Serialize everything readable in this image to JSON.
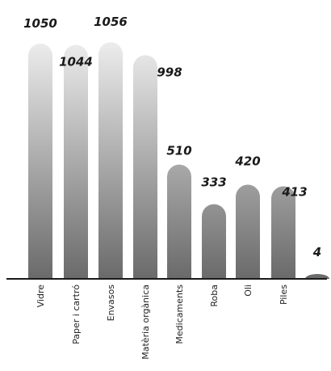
{
  "chart_data": {
    "type": "bar",
    "categories": [
      "Vidre",
      "Paper i cartró",
      "Envasos",
      "Matèria orgànica",
      "Medicaments",
      "Roba",
      "Oli",
      "Piles",
      ""
    ],
    "values": [
      1050,
      1044,
      1056,
      998,
      510,
      333,
      420,
      413,
      4
    ],
    "value_labels": [
      "1050",
      "1044",
      "1056",
      "998",
      "510",
      "333",
      "420",
      "413",
      "4"
    ],
    "title": "",
    "xlabel": "",
    "ylabel": "",
    "ylim": [
      0,
      1100
    ],
    "grid": false,
    "legend": "none",
    "colors": {
      "top_light": "#f2f2f2",
      "bottom_dark": "#6a6a6a",
      "axis": "#1a1a1a",
      "text": "#1a1a1a"
    }
  }
}
